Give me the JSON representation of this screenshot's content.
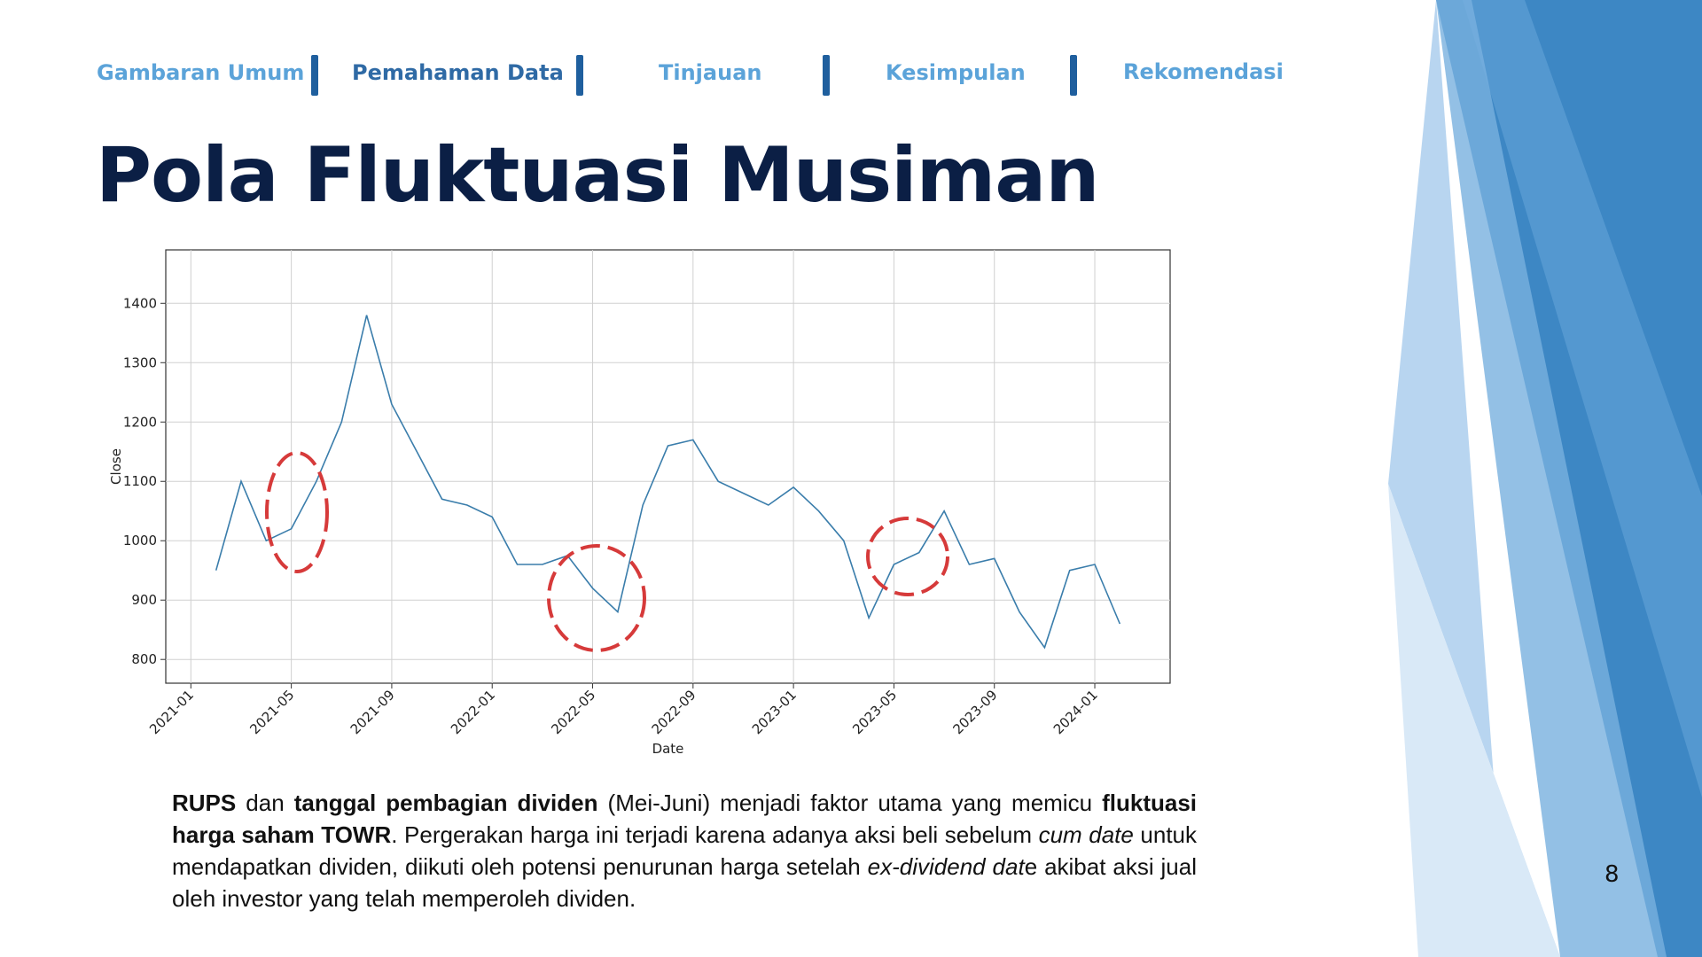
{
  "nav": [
    "Gambaran Umum",
    "Pemahaman Data",
    "Tinjauan",
    "Kesimpulan",
    "Rekomendasi"
  ],
  "title": "Pola Fluktuasi Musiman",
  "chart_data": {
    "type": "line",
    "x_label": "Date",
    "y_label": "Close",
    "x": [
      "2021-02",
      "2021-03",
      "2021-04",
      "2021-05",
      "2021-06",
      "2021-07",
      "2021-08",
      "2021-09",
      "2021-10",
      "2021-11",
      "2021-12",
      "2022-01",
      "2022-02",
      "2022-03",
      "2022-04",
      "2022-05",
      "2022-06",
      "2022-07",
      "2022-08",
      "2022-09",
      "2022-10",
      "2022-11",
      "2022-12",
      "2023-01",
      "2023-02",
      "2023-03",
      "2023-04",
      "2023-05",
      "2023-06",
      "2023-07",
      "2023-08",
      "2023-09",
      "2023-10",
      "2023-11",
      "2023-12",
      "2024-01",
      "2024-02"
    ],
    "series": [
      {
        "name": "Close",
        "color": "#3a7dab",
        "values": [
          950,
          1100,
          1000,
          1020,
          1100,
          1200,
          1380,
          1230,
          1150,
          1070,
          1060,
          1040,
          960,
          960,
          975,
          920,
          880,
          1060,
          1160,
          1170,
          1100,
          1080,
          1060,
          1090,
          1050,
          1000,
          870,
          960,
          980,
          1050,
          960,
          970,
          880,
          820,
          950,
          960,
          860
        ]
      }
    ],
    "xlim": [
      "2020-12",
      "2024-04"
    ],
    "xticks": [
      "2021-01",
      "2021-05",
      "2021-09",
      "2022-01",
      "2022-05",
      "2022-09",
      "2023-01",
      "2023-05",
      "2023-09",
      "2024-01"
    ],
    "ylim": [
      760,
      1490
    ],
    "yticks": [
      800,
      900,
      1000,
      1100,
      1200,
      1300,
      1400
    ],
    "grid": true
  },
  "body": {
    "runs": [
      "RUPS",
      " dan ",
      "tanggal pembagian dividen",
      " (Mei-Juni) menjadi faktor utama yang memicu ",
      "fluktuasi harga saham TOWR",
      ". Pergerakan harga ini terjadi karena adanya aksi beli sebelum ",
      "cum date",
      " untuk mendapatkan dividen, diikuti oleh potensi penurunan harga setelah ",
      "ex-dividend dat",
      "e akibat aksi jual oleh investor yang telah memperoleh dividen."
    ]
  },
  "page_number": "8"
}
